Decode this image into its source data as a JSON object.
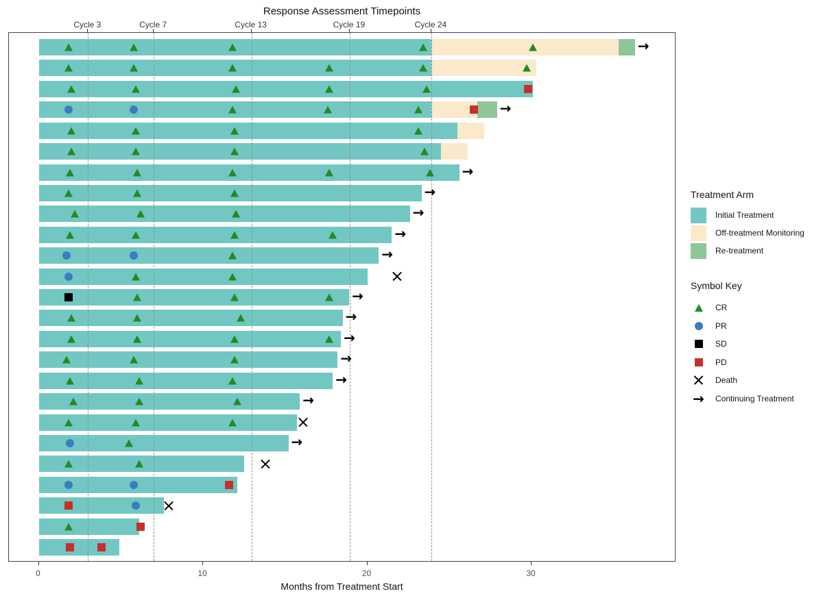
{
  "colors": {
    "initial_treatment": "#72C7C3",
    "off_treatment_monitoring": "#FBE9CB",
    "re_treatment": "#8DC799",
    "cr": "#228B22",
    "pr": "#3D7CBE",
    "sd": "#000000",
    "pd": "#C5302C",
    "gridline": "#8f8f8f"
  },
  "icons": {
    "continuing_arrow": "→"
  },
  "legend": {
    "arm_title": "Treatment Arm",
    "arm_items": [
      {
        "label": "Initial Treatment",
        "key": "initial_treatment"
      },
      {
        "label": "Off-treatment Monitoring",
        "key": "off_treatment_monitoring"
      },
      {
        "label": "Re-treatment",
        "key": "re_treatment"
      }
    ],
    "symbol_title": "Symbol Key",
    "symbol_items": [
      {
        "label": "CR",
        "type": "CR"
      },
      {
        "label": "PR",
        "type": "PR"
      },
      {
        "label": "SD",
        "type": "SD"
      },
      {
        "label": "PD",
        "type": "PD"
      },
      {
        "label": "Death",
        "type": "Death"
      },
      {
        "label": "Continuing Treatment",
        "type": "Arrow"
      }
    ]
  },
  "chart_data": {
    "type": "swimmer",
    "title": "Response Assessment Timepoints",
    "xlabel": "Months from Treatment Start",
    "x_ticks": [
      0,
      10,
      20,
      30
    ],
    "xlim": [
      -1.8,
      38.6
    ],
    "grid": "dashed-vertical-at-cycles",
    "legend_position": "right",
    "top_axis": {
      "labels": [
        "Cycle 3",
        "Cycle 7",
        "Cycle 13",
        "Cycle 19",
        "Cycle 24"
      ],
      "months": [
        3.0,
        7.0,
        12.95,
        18.93,
        23.9
      ]
    },
    "subjects": [
      {
        "segments": [
          [
            "initial",
            0,
            23.9
          ],
          [
            "off",
            23.9,
            35.3
          ],
          [
            "re",
            35.3,
            36.3
          ]
        ],
        "markers": [
          [
            "CR",
            1.8
          ],
          [
            "CR",
            5.8
          ],
          [
            "CR",
            11.8
          ],
          [
            "CR",
            23.4
          ],
          [
            "CR",
            30.1
          ]
        ],
        "continuing": true
      },
      {
        "segments": [
          [
            "initial",
            0,
            23.9
          ],
          [
            "off",
            23.9,
            30.3
          ]
        ],
        "markers": [
          [
            "CR",
            1.8
          ],
          [
            "CR",
            5.8
          ],
          [
            "CR",
            11.8
          ],
          [
            "CR",
            17.7
          ],
          [
            "CR",
            23.4
          ],
          [
            "CR",
            29.7
          ]
        ],
        "continuing": false
      },
      {
        "segments": [
          [
            "initial",
            0,
            30.1
          ]
        ],
        "markers": [
          [
            "CR",
            2.0
          ],
          [
            "CR",
            5.9
          ],
          [
            "CR",
            12.0
          ],
          [
            "CR",
            17.7
          ],
          [
            "CR",
            23.6
          ],
          [
            "PD",
            29.8
          ]
        ],
        "continuing": false
      },
      {
        "segments": [
          [
            "initial",
            0,
            23.9
          ],
          [
            "off",
            23.9,
            26.7
          ],
          [
            "re",
            26.7,
            27.9
          ]
        ],
        "markers": [
          [
            "PR",
            1.8
          ],
          [
            "PR",
            5.8
          ],
          [
            "CR",
            11.8
          ],
          [
            "CR",
            17.6
          ],
          [
            "CR",
            23.1
          ],
          [
            "PD",
            26.5
          ]
        ],
        "continuing": true
      },
      {
        "segments": [
          [
            "initial",
            0,
            25.5
          ],
          [
            "off",
            25.5,
            27.1
          ]
        ],
        "markers": [
          [
            "CR",
            2.0
          ],
          [
            "CR",
            5.9
          ],
          [
            "CR",
            11.9
          ],
          [
            "CR",
            23.1
          ]
        ],
        "continuing": false
      },
      {
        "segments": [
          [
            "initial",
            0,
            24.5
          ],
          [
            "off",
            24.5,
            26.1
          ]
        ],
        "markers": [
          [
            "CR",
            2.0
          ],
          [
            "CR",
            5.9
          ],
          [
            "CR",
            11.9
          ],
          [
            "CR",
            23.5
          ]
        ],
        "continuing": false
      },
      {
        "segments": [
          [
            "initial",
            0,
            25.6
          ]
        ],
        "markers": [
          [
            "CR",
            1.9
          ],
          [
            "CR",
            6.0
          ],
          [
            "CR",
            11.8
          ],
          [
            "CR",
            17.7
          ],
          [
            "CR",
            23.8
          ]
        ],
        "continuing": true
      },
      {
        "segments": [
          [
            "initial",
            0,
            23.3
          ]
        ],
        "markers": [
          [
            "CR",
            1.8
          ],
          [
            "CR",
            6.0
          ],
          [
            "CR",
            11.9
          ]
        ],
        "continuing": true
      },
      {
        "segments": [
          [
            "initial",
            0,
            22.6
          ]
        ],
        "markers": [
          [
            "CR",
            2.2
          ],
          [
            "CR",
            6.2
          ],
          [
            "CR",
            12.0
          ]
        ],
        "continuing": true
      },
      {
        "segments": [
          [
            "initial",
            0,
            21.5
          ]
        ],
        "markers": [
          [
            "CR",
            1.9
          ],
          [
            "CR",
            5.9
          ],
          [
            "CR",
            11.9
          ],
          [
            "CR",
            17.9
          ]
        ],
        "continuing": true
      },
      {
        "segments": [
          [
            "initial",
            0,
            20.7
          ]
        ],
        "markers": [
          [
            "PR",
            1.7
          ],
          [
            "PR",
            5.8
          ],
          [
            "CR",
            11.8
          ]
        ],
        "continuing": true
      },
      {
        "segments": [
          [
            "initial",
            0,
            20.0
          ]
        ],
        "markers": [
          [
            "PR",
            1.8
          ],
          [
            "CR",
            5.9
          ],
          [
            "CR",
            11.8
          ],
          [
            "Death",
            21.8
          ]
        ],
        "continuing": false
      },
      {
        "segments": [
          [
            "initial",
            0,
            18.9
          ]
        ],
        "markers": [
          [
            "SD",
            1.8
          ],
          [
            "CR",
            6.0
          ],
          [
            "CR",
            11.9
          ],
          [
            "CR",
            17.7
          ]
        ],
        "continuing": true
      },
      {
        "segments": [
          [
            "initial",
            0,
            18.5
          ]
        ],
        "markers": [
          [
            "CR",
            2.0
          ],
          [
            "CR",
            6.0
          ],
          [
            "CR",
            12.3
          ]
        ],
        "continuing": true
      },
      {
        "segments": [
          [
            "initial",
            0,
            18.4
          ]
        ],
        "markers": [
          [
            "CR",
            2.0
          ],
          [
            "CR",
            6.0
          ],
          [
            "CR",
            11.9
          ],
          [
            "CR",
            17.7
          ]
        ],
        "continuing": true
      },
      {
        "segments": [
          [
            "initial",
            0,
            18.2
          ]
        ],
        "markers": [
          [
            "CR",
            1.7
          ],
          [
            "CR",
            5.8
          ],
          [
            "CR",
            11.9
          ]
        ],
        "continuing": true
      },
      {
        "segments": [
          [
            "initial",
            0,
            17.9
          ]
        ],
        "markers": [
          [
            "CR",
            1.9
          ],
          [
            "CR",
            6.1
          ],
          [
            "CR",
            11.8
          ]
        ],
        "continuing": true
      },
      {
        "segments": [
          [
            "initial",
            0,
            15.9
          ]
        ],
        "markers": [
          [
            "CR",
            2.1
          ],
          [
            "CR",
            6.1
          ],
          [
            "CR",
            12.1
          ]
        ],
        "continuing": true
      },
      {
        "segments": [
          [
            "initial",
            0,
            15.7
          ]
        ],
        "markers": [
          [
            "CR",
            1.8
          ],
          [
            "CR",
            5.9
          ],
          [
            "CR",
            11.8
          ],
          [
            "Death",
            16.1
          ]
        ],
        "continuing": false
      },
      {
        "segments": [
          [
            "initial",
            0,
            15.2
          ]
        ],
        "markers": [
          [
            "PR",
            1.9
          ],
          [
            "CR",
            5.5
          ]
        ],
        "continuing": true
      },
      {
        "segments": [
          [
            "initial",
            0,
            12.5
          ]
        ],
        "markers": [
          [
            "CR",
            1.8
          ],
          [
            "CR",
            6.1
          ],
          [
            "Death",
            13.8
          ]
        ],
        "continuing": false
      },
      {
        "segments": [
          [
            "initial",
            0,
            12.1
          ]
        ],
        "markers": [
          [
            "PR",
            1.8
          ],
          [
            "PR",
            5.8
          ],
          [
            "PD",
            11.6
          ]
        ],
        "continuing": false
      },
      {
        "segments": [
          [
            "initial",
            0,
            7.6
          ]
        ],
        "markers": [
          [
            "PD",
            1.8
          ],
          [
            "PR",
            5.9
          ],
          [
            "Death",
            7.9
          ]
        ],
        "continuing": false
      },
      {
        "segments": [
          [
            "initial",
            0,
            6.1
          ]
        ],
        "markers": [
          [
            "CR",
            1.8
          ],
          [
            "PD",
            6.2
          ]
        ],
        "continuing": false
      },
      {
        "segments": [
          [
            "initial",
            0,
            4.9
          ]
        ],
        "markers": [
          [
            "PD",
            1.9
          ],
          [
            "PD",
            3.8
          ]
        ],
        "continuing": false
      }
    ]
  }
}
